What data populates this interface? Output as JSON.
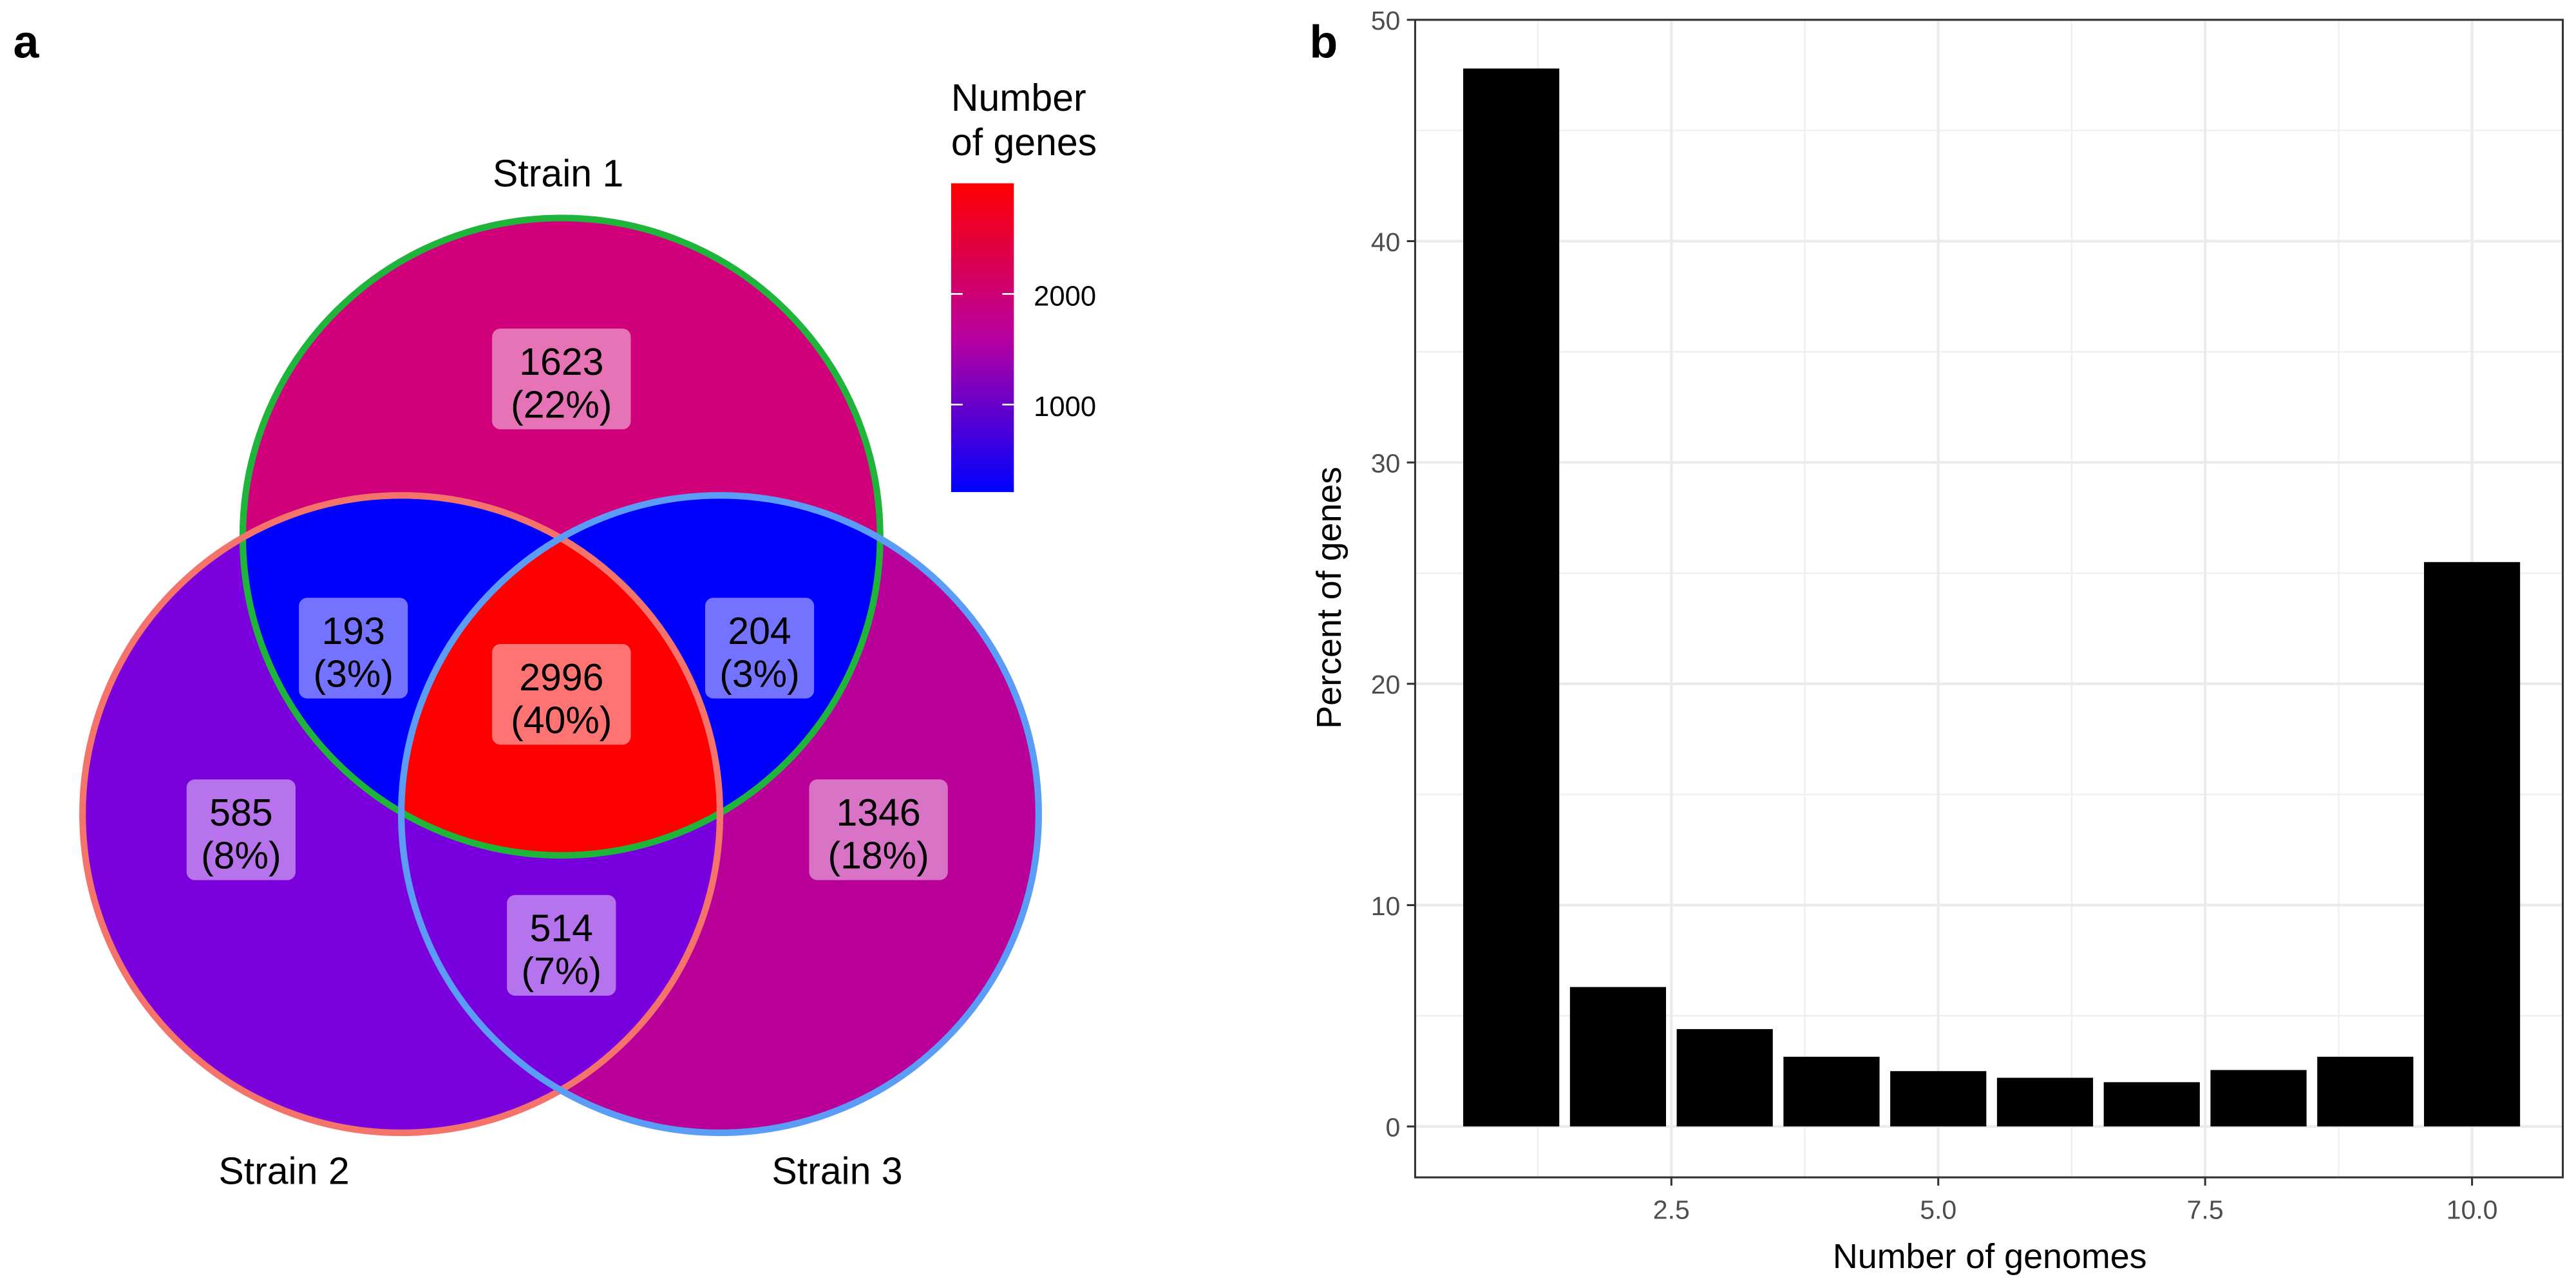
{
  "chart_data": [
    {
      "panel": "a",
      "type": "venn",
      "sets": [
        "Strain 1",
        "Strain 2",
        "Strain 3"
      ],
      "set_colors": [
        "#1fb43a",
        "#f4736a",
        "#5b9cf6"
      ],
      "regions": [
        {
          "key": "1",
          "sets": [
            "Strain 1"
          ],
          "count": "1623",
          "percent": "(22%)",
          "color": "#cf007a"
        },
        {
          "key": "2",
          "sets": [
            "Strain 2"
          ],
          "count": "585",
          "percent": "(8%)",
          "color": "#7a00dc"
        },
        {
          "key": "3",
          "sets": [
            "Strain 3"
          ],
          "count": "1346",
          "percent": "(18%)",
          "color": "#b90098"
        },
        {
          "key": "12",
          "sets": [
            "Strain 1",
            "Strain 2"
          ],
          "count": "193",
          "percent": "(3%)",
          "color": "#0000ff"
        },
        {
          "key": "13",
          "sets": [
            "Strain 1",
            "Strain 3"
          ],
          "count": "204",
          "percent": "(3%)",
          "color": "#0000ff"
        },
        {
          "key": "23",
          "sets": [
            "Strain 2",
            "Strain 3"
          ],
          "count": "514",
          "percent": "(7%)",
          "color": "#7800de"
        },
        {
          "key": "123",
          "sets": [
            "Strain 1",
            "Strain 2",
            "Strain 3"
          ],
          "count": "2996",
          "percent": "(40%)",
          "color": "#ff0000"
        }
      ],
      "legend": {
        "title_line1": "Number",
        "title_line2": "of genes",
        "ticks": [
          "2000",
          "1000"
        ],
        "gradient": [
          "#0000ff",
          "#cc0077",
          "#ff0000"
        ]
      }
    },
    {
      "panel": "b",
      "type": "bar",
      "xlabel": "Number of genomes",
      "ylabel": "Percent of genes",
      "x": [
        1,
        2,
        3,
        4,
        5,
        6,
        7,
        8,
        9,
        10
      ],
      "values": [
        47.8,
        6.3,
        4.4,
        3.15,
        2.5,
        2.2,
        2.0,
        2.55,
        3.15,
        25.5
      ],
      "xlim": [
        0.1,
        10.85
      ],
      "ylim": [
        -2.3,
        50
      ],
      "xticks": [
        "2.5",
        "5.0",
        "7.5",
        "10.0"
      ],
      "yticks": [
        "0",
        "10",
        "20",
        "30",
        "40",
        "50"
      ],
      "grid": true,
      "bar_color": "#000000"
    }
  ]
}
